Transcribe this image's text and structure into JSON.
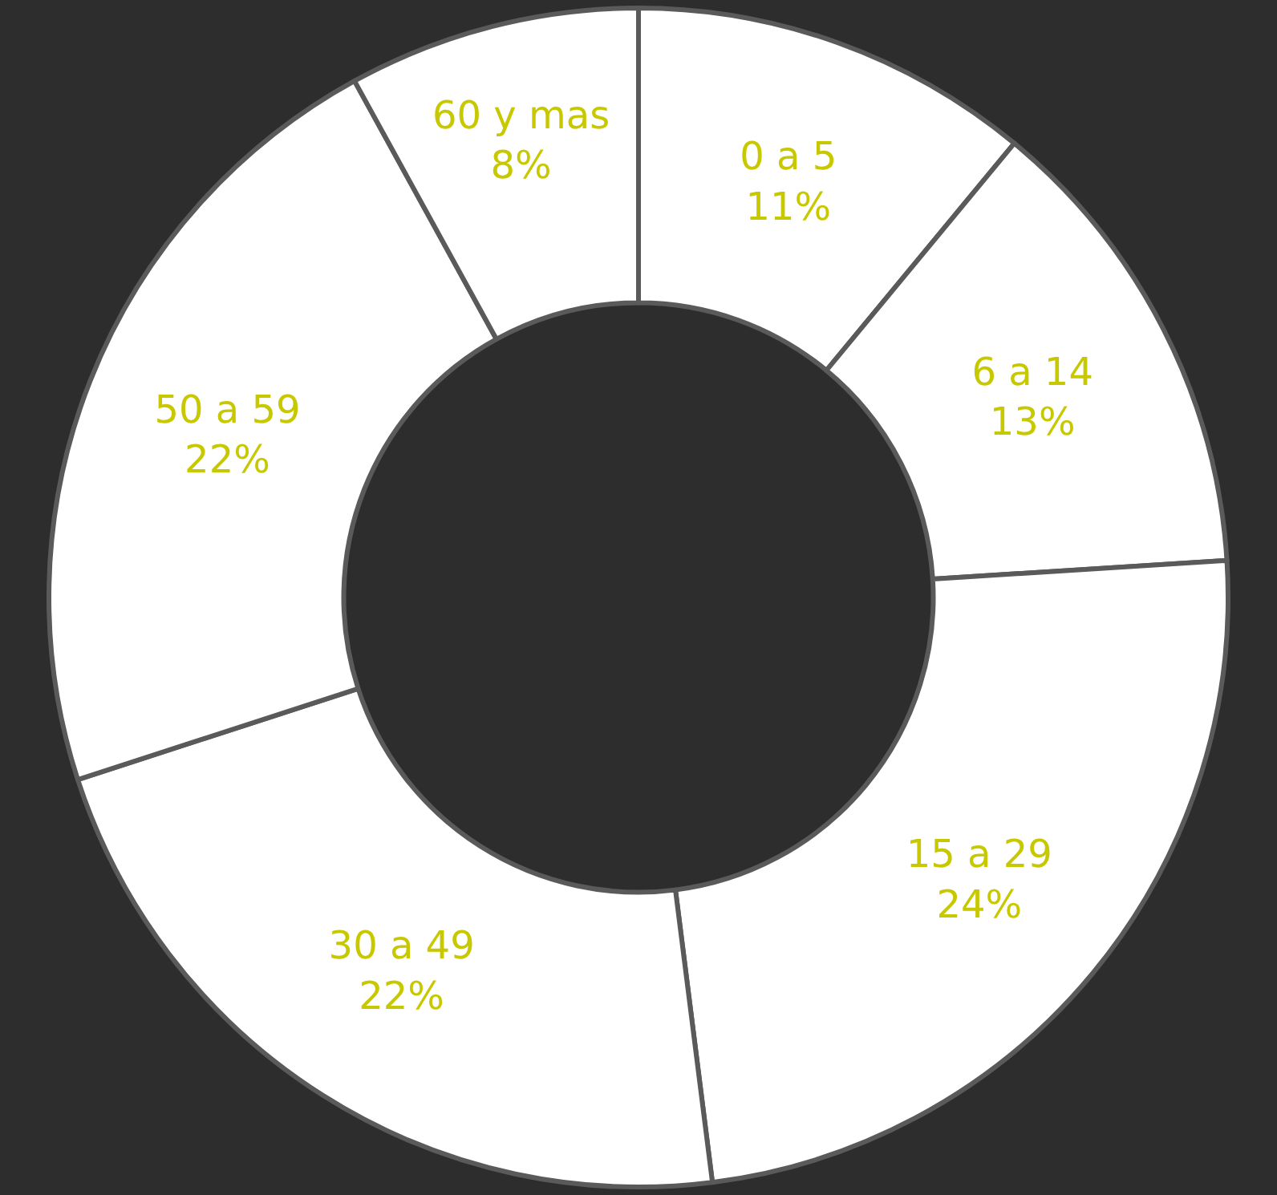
{
  "chart_data": {
    "type": "donut",
    "categories": [
      "0 a 5",
      "6 a 14",
      "15 a 29",
      "30 a 49",
      "50 a 59",
      "60 y mas"
    ],
    "values": [
      11,
      13,
      24,
      22,
      22,
      8
    ],
    "value_labels": [
      "11%",
      "13%",
      "24%",
      "22%",
      "22%",
      "8%"
    ],
    "colors": [
      "#ffffff",
      "#ffffff",
      "#ffffff",
      "#ffffff",
      "#ffffff",
      "#ffffff"
    ],
    "legend": false
  }
}
